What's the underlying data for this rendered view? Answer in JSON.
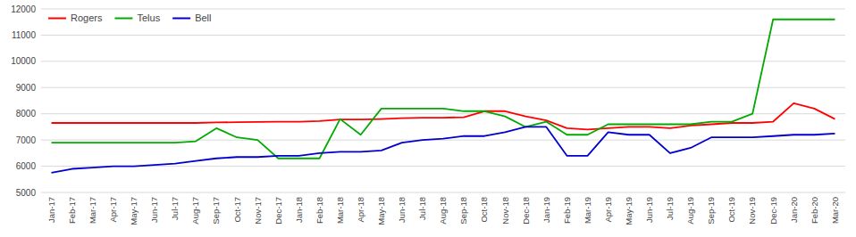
{
  "chart_data": {
    "type": "line",
    "categories": [
      "Jan-17",
      "Feb-17",
      "Mar-17",
      "Apr-17",
      "May-17",
      "Jun-17",
      "Jul-17",
      "Aug-17",
      "Sep-17",
      "Oct-17",
      "Nov-17",
      "Dec-17",
      "Jan-18",
      "Feb-18",
      "Mar-18",
      "Apr-18",
      "May-18",
      "Jun-18",
      "Jul-18",
      "Aug-18",
      "Sep-18",
      "Oct-18",
      "Nov-18",
      "Dec-18",
      "Jan-19",
      "Feb-19",
      "Mar-19",
      "Apr-19",
      "May-19",
      "Jun-19",
      "Jul-19",
      "Aug-19",
      "Sep-19",
      "Oct-19",
      "Nov-19",
      "Dec-19",
      "Jan-20",
      "Feb-20",
      "Mar-20"
    ],
    "series": [
      {
        "name": "Rogers",
        "color": "#FF0000",
        "values": [
          7650,
          7650,
          7650,
          7650,
          7650,
          7650,
          7650,
          7650,
          7670,
          7680,
          7690,
          7700,
          7700,
          7720,
          7780,
          7780,
          7800,
          7830,
          7850,
          7850,
          7870,
          8100,
          8100,
          7900,
          7750,
          7450,
          7400,
          7450,
          7500,
          7500,
          7450,
          7550,
          7600,
          7650,
          7650,
          7700,
          8400,
          8200,
          7800
        ]
      },
      {
        "name": "Telus",
        "color": "#00AA00",
        "values": [
          6900,
          6900,
          6900,
          6900,
          6900,
          6900,
          6900,
          6950,
          7450,
          7100,
          7000,
          6300,
          6300,
          6300,
          7800,
          7200,
          8200,
          8200,
          8200,
          8200,
          8100,
          8100,
          7900,
          7500,
          7700,
          7200,
          7200,
          7600,
          7600,
          7600,
          7600,
          7600,
          7700,
          7700,
          8000,
          11600,
          11600,
          11600,
          11600
        ]
      },
      {
        "name": "Bell",
        "color": "#0000CD",
        "values": [
          5750,
          5900,
          5950,
          6000,
          6000,
          6050,
          6100,
          6200,
          6300,
          6350,
          6350,
          6400,
          6400,
          6500,
          6550,
          6550,
          6600,
          6900,
          7000,
          7050,
          7150,
          7150,
          7300,
          7500,
          7500,
          6400,
          6400,
          7300,
          7200,
          7200,
          6500,
          6700,
          7100,
          7100,
          7100,
          7150,
          7200,
          7200,
          7250
        ]
      }
    ],
    "ylim": [
      5000,
      12000
    ],
    "yticks": [
      5000,
      6000,
      7000,
      8000,
      9000,
      10000,
      11000,
      12000
    ],
    "grid": true,
    "legend": "upper left"
  }
}
